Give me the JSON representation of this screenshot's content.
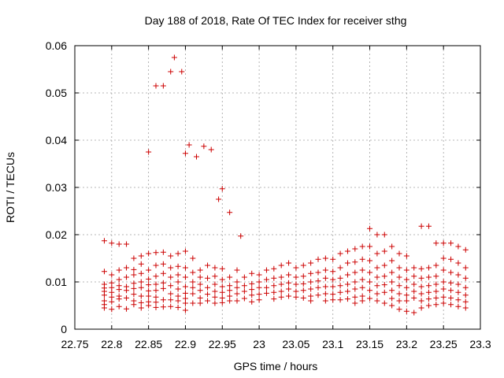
{
  "chart_data": {
    "type": "scatter",
    "title": "Day 188 of 2018, Rate Of TEC Index for receiver sthg",
    "xlabel": "GPS time / hours",
    "ylabel": "ROTI / TECUs",
    "xlim": [
      22.75,
      23.3
    ],
    "ylim": [
      0,
      0.06
    ],
    "grid": true,
    "marker": "+",
    "color": "#cc0000",
    "x_ticks": [
      "22.75",
      "22.8",
      "22.85",
      "22.9",
      "22.95",
      "23",
      "23.05",
      "23.1",
      "23.15",
      "23.2",
      "23.25",
      "23.3"
    ],
    "y_ticks": [
      "0",
      "0.01",
      "0.02",
      "0.03",
      "0.04",
      "0.05",
      "0.06"
    ],
    "points": [
      [
        22.79,
        0.0187
      ],
      [
        22.79,
        0.0122
      ],
      [
        22.79,
        0.0095
      ],
      [
        22.79,
        0.0087
      ],
      [
        22.79,
        0.008
      ],
      [
        22.79,
        0.0072
      ],
      [
        22.79,
        0.006
      ],
      [
        22.79,
        0.0052
      ],
      [
        22.79,
        0.0045
      ],
      [
        22.8,
        0.0182
      ],
      [
        22.8,
        0.0115
      ],
      [
        22.8,
        0.0098
      ],
      [
        22.8,
        0.0088
      ],
      [
        22.8,
        0.0078
      ],
      [
        22.8,
        0.0068
      ],
      [
        22.8,
        0.0058
      ],
      [
        22.8,
        0.0042
      ],
      [
        22.81,
        0.018
      ],
      [
        22.81,
        0.0125
      ],
      [
        22.81,
        0.0105
      ],
      [
        22.81,
        0.0092
      ],
      [
        22.81,
        0.0084
      ],
      [
        22.81,
        0.007
      ],
      [
        22.81,
        0.0064
      ],
      [
        22.81,
        0.0048
      ],
      [
        22.82,
        0.018
      ],
      [
        22.82,
        0.013
      ],
      [
        22.82,
        0.011
      ],
      [
        22.82,
        0.009
      ],
      [
        22.82,
        0.0082
      ],
      [
        22.82,
        0.0066
      ],
      [
        22.82,
        0.0043
      ],
      [
        22.83,
        0.015
      ],
      [
        22.83,
        0.0126
      ],
      [
        22.83,
        0.0115
      ],
      [
        22.83,
        0.0097
      ],
      [
        22.83,
        0.0086
      ],
      [
        22.83,
        0.0074
      ],
      [
        22.83,
        0.006
      ],
      [
        22.83,
        0.0052
      ],
      [
        22.84,
        0.0155
      ],
      [
        22.84,
        0.0138
      ],
      [
        22.84,
        0.0118
      ],
      [
        22.84,
        0.01
      ],
      [
        22.84,
        0.0088
      ],
      [
        22.84,
        0.007
      ],
      [
        22.84,
        0.0056
      ],
      [
        22.84,
        0.0045
      ],
      [
        22.85,
        0.016
      ],
      [
        22.85,
        0.0125
      ],
      [
        22.85,
        0.0106
      ],
      [
        22.85,
        0.0094
      ],
      [
        22.85,
        0.0081
      ],
      [
        22.85,
        0.007
      ],
      [
        22.85,
        0.0058
      ],
      [
        22.85,
        0.005
      ],
      [
        22.86,
        0.0162
      ],
      [
        22.86,
        0.0135
      ],
      [
        22.86,
        0.0112
      ],
      [
        22.86,
        0.0095
      ],
      [
        22.86,
        0.0082
      ],
      [
        22.86,
        0.0068
      ],
      [
        22.86,
        0.0057
      ],
      [
        22.86,
        0.0046
      ],
      [
        22.87,
        0.0163
      ],
      [
        22.87,
        0.0138
      ],
      [
        22.87,
        0.0118
      ],
      [
        22.87,
        0.0098
      ],
      [
        22.87,
        0.0086
      ],
      [
        22.87,
        0.0062
      ],
      [
        22.87,
        0.0047
      ],
      [
        22.88,
        0.0155
      ],
      [
        22.88,
        0.013
      ],
      [
        22.88,
        0.011
      ],
      [
        22.88,
        0.0092
      ],
      [
        22.88,
        0.0075
      ],
      [
        22.88,
        0.0062
      ],
      [
        22.88,
        0.0048
      ],
      [
        22.89,
        0.016
      ],
      [
        22.89,
        0.0133
      ],
      [
        22.89,
        0.0115
      ],
      [
        22.89,
        0.01
      ],
      [
        22.89,
        0.0085
      ],
      [
        22.89,
        0.007
      ],
      [
        22.89,
        0.006
      ],
      [
        22.89,
        0.0046
      ],
      [
        22.9,
        0.0165
      ],
      [
        22.9,
        0.013
      ],
      [
        22.9,
        0.011
      ],
      [
        22.9,
        0.009
      ],
      [
        22.9,
        0.0076
      ],
      [
        22.9,
        0.0065
      ],
      [
        22.9,
        0.0055
      ],
      [
        22.9,
        0.004
      ],
      [
        22.91,
        0.015
      ],
      [
        22.91,
        0.012
      ],
      [
        22.91,
        0.01
      ],
      [
        22.91,
        0.0088
      ],
      [
        22.91,
        0.0075
      ],
      [
        22.91,
        0.0055
      ],
      [
        22.92,
        0.0125
      ],
      [
        22.92,
        0.011
      ],
      [
        22.92,
        0.0095
      ],
      [
        22.92,
        0.0082
      ],
      [
        22.92,
        0.0066
      ],
      [
        22.92,
        0.0055
      ],
      [
        22.93,
        0.0135
      ],
      [
        22.93,
        0.0108
      ],
      [
        22.93,
        0.0088
      ],
      [
        22.93,
        0.0074
      ],
      [
        22.93,
        0.006
      ],
      [
        22.94,
        0.013
      ],
      [
        22.94,
        0.0112
      ],
      [
        22.94,
        0.0095
      ],
      [
        22.94,
        0.008
      ],
      [
        22.94,
        0.0068
      ],
      [
        22.94,
        0.0055
      ],
      [
        22.95,
        0.0128
      ],
      [
        22.95,
        0.0105
      ],
      [
        22.95,
        0.009
      ],
      [
        22.95,
        0.0078
      ],
      [
        22.95,
        0.0066
      ],
      [
        22.95,
        0.0056
      ],
      [
        22.96,
        0.011
      ],
      [
        22.96,
        0.0092
      ],
      [
        22.96,
        0.0082
      ],
      [
        22.96,
        0.007
      ],
      [
        22.96,
        0.006
      ],
      [
        22.97,
        0.0125
      ],
      [
        22.97,
        0.01
      ],
      [
        22.97,
        0.0088
      ],
      [
        22.97,
        0.0075
      ],
      [
        22.97,
        0.006
      ],
      [
        22.98,
        0.011
      ],
      [
        22.98,
        0.0092
      ],
      [
        22.98,
        0.008
      ],
      [
        22.98,
        0.0065
      ],
      [
        22.99,
        0.0118
      ],
      [
        22.99,
        0.0096
      ],
      [
        22.99,
        0.0084
      ],
      [
        22.99,
        0.0072
      ],
      [
        22.99,
        0.0058
      ],
      [
        23.0,
        0.0115
      ],
      [
        23.0,
        0.01
      ],
      [
        23.0,
        0.0088
      ],
      [
        23.0,
        0.0074
      ],
      [
        23.0,
        0.0062
      ],
      [
        23.01,
        0.0125
      ],
      [
        23.01,
        0.0105
      ],
      [
        23.01,
        0.0088
      ],
      [
        23.01,
        0.0076
      ],
      [
        23.02,
        0.0128
      ],
      [
        23.02,
        0.0108
      ],
      [
        23.02,
        0.0092
      ],
      [
        23.02,
        0.0078
      ],
      [
        23.02,
        0.0064
      ],
      [
        23.03,
        0.0135
      ],
      [
        23.03,
        0.011
      ],
      [
        23.03,
        0.0095
      ],
      [
        23.03,
        0.008
      ],
      [
        23.03,
        0.0068
      ],
      [
        23.04,
        0.014
      ],
      [
        23.04,
        0.0115
      ],
      [
        23.04,
        0.0098
      ],
      [
        23.04,
        0.0085
      ],
      [
        23.04,
        0.007
      ],
      [
        23.05,
        0.013
      ],
      [
        23.05,
        0.011
      ],
      [
        23.05,
        0.0095
      ],
      [
        23.05,
        0.008
      ],
      [
        23.05,
        0.0068
      ],
      [
        23.06,
        0.0135
      ],
      [
        23.06,
        0.0112
      ],
      [
        23.06,
        0.0096
      ],
      [
        23.06,
        0.0082
      ],
      [
        23.06,
        0.0066
      ],
      [
        23.07,
        0.014
      ],
      [
        23.07,
        0.0118
      ],
      [
        23.07,
        0.01
      ],
      [
        23.07,
        0.0085
      ],
      [
        23.07,
        0.007
      ],
      [
        23.07,
        0.006
      ],
      [
        23.08,
        0.0148
      ],
      [
        23.08,
        0.012
      ],
      [
        23.08,
        0.0102
      ],
      [
        23.08,
        0.0088
      ],
      [
        23.08,
        0.0072
      ],
      [
        23.09,
        0.015
      ],
      [
        23.09,
        0.0125
      ],
      [
        23.09,
        0.0108
      ],
      [
        23.09,
        0.009
      ],
      [
        23.09,
        0.0075
      ],
      [
        23.09,
        0.006
      ],
      [
        23.1,
        0.0148
      ],
      [
        23.1,
        0.0122
      ],
      [
        23.1,
        0.0105
      ],
      [
        23.1,
        0.009
      ],
      [
        23.1,
        0.0074
      ],
      [
        23.1,
        0.0062
      ],
      [
        23.11,
        0.016
      ],
      [
        23.11,
        0.013
      ],
      [
        23.11,
        0.0108
      ],
      [
        23.11,
        0.0092
      ],
      [
        23.11,
        0.0078
      ],
      [
        23.11,
        0.0062
      ],
      [
        23.12,
        0.0165
      ],
      [
        23.12,
        0.014
      ],
      [
        23.12,
        0.0115
      ],
      [
        23.12,
        0.0095
      ],
      [
        23.12,
        0.008
      ],
      [
        23.12,
        0.0064
      ],
      [
        23.13,
        0.017
      ],
      [
        23.13,
        0.0142
      ],
      [
        23.13,
        0.012
      ],
      [
        23.13,
        0.01
      ],
      [
        23.13,
        0.0085
      ],
      [
        23.13,
        0.0068
      ],
      [
        23.13,
        0.0055
      ],
      [
        23.14,
        0.0175
      ],
      [
        23.14,
        0.0148
      ],
      [
        23.14,
        0.0125
      ],
      [
        23.14,
        0.0105
      ],
      [
        23.14,
        0.0088
      ],
      [
        23.14,
        0.007
      ],
      [
        23.14,
        0.006
      ],
      [
        23.15,
        0.0213
      ],
      [
        23.15,
        0.0175
      ],
      [
        23.15,
        0.0145
      ],
      [
        23.15,
        0.012
      ],
      [
        23.15,
        0.01
      ],
      [
        23.15,
        0.0082
      ],
      [
        23.15,
        0.0065
      ],
      [
        23.16,
        0.02
      ],
      [
        23.16,
        0.016
      ],
      [
        23.16,
        0.013
      ],
      [
        23.16,
        0.011
      ],
      [
        23.16,
        0.0092
      ],
      [
        23.16,
        0.0075
      ],
      [
        23.16,
        0.006
      ],
      [
        23.17,
        0.02
      ],
      [
        23.17,
        0.0165
      ],
      [
        23.17,
        0.0135
      ],
      [
        23.17,
        0.0112
      ],
      [
        23.17,
        0.0094
      ],
      [
        23.17,
        0.0078
      ],
      [
        23.17,
        0.0055
      ],
      [
        23.18,
        0.0175
      ],
      [
        23.18,
        0.0145
      ],
      [
        23.18,
        0.012
      ],
      [
        23.18,
        0.01
      ],
      [
        23.18,
        0.0082
      ],
      [
        23.18,
        0.0065
      ],
      [
        23.18,
        0.005
      ],
      [
        23.19,
        0.016
      ],
      [
        23.19,
        0.013
      ],
      [
        23.19,
        0.011
      ],
      [
        23.19,
        0.0092
      ],
      [
        23.19,
        0.0075
      ],
      [
        23.19,
        0.006
      ],
      [
        23.19,
        0.0042
      ],
      [
        23.2,
        0.0155
      ],
      [
        23.2,
        0.0125
      ],
      [
        23.2,
        0.0105
      ],
      [
        23.2,
        0.0088
      ],
      [
        23.2,
        0.0072
      ],
      [
        23.2,
        0.006
      ],
      [
        23.2,
        0.0038
      ],
      [
        23.21,
        0.013
      ],
      [
        23.21,
        0.0112
      ],
      [
        23.21,
        0.0095
      ],
      [
        23.21,
        0.008
      ],
      [
        23.21,
        0.0066
      ],
      [
        23.21,
        0.0035
      ],
      [
        23.22,
        0.0218
      ],
      [
        23.22,
        0.0128
      ],
      [
        23.22,
        0.0108
      ],
      [
        23.22,
        0.009
      ],
      [
        23.22,
        0.0075
      ],
      [
        23.22,
        0.006
      ],
      [
        23.22,
        0.0045
      ],
      [
        23.23,
        0.0218
      ],
      [
        23.23,
        0.013
      ],
      [
        23.23,
        0.011
      ],
      [
        23.23,
        0.0092
      ],
      [
        23.23,
        0.0078
      ],
      [
        23.23,
        0.0064
      ],
      [
        23.23,
        0.005
      ],
      [
        23.24,
        0.0182
      ],
      [
        23.24,
        0.0135
      ],
      [
        23.24,
        0.0112
      ],
      [
        23.24,
        0.0095
      ],
      [
        23.24,
        0.008
      ],
      [
        23.24,
        0.0066
      ],
      [
        23.24,
        0.0052
      ],
      [
        23.25,
        0.0182
      ],
      [
        23.25,
        0.015
      ],
      [
        23.25,
        0.0125
      ],
      [
        23.25,
        0.01
      ],
      [
        23.25,
        0.0085
      ],
      [
        23.25,
        0.0068
      ],
      [
        23.25,
        0.0055
      ],
      [
        23.26,
        0.0182
      ],
      [
        23.26,
        0.0148
      ],
      [
        23.26,
        0.012
      ],
      [
        23.26,
        0.0098
      ],
      [
        23.26,
        0.0082
      ],
      [
        23.26,
        0.0066
      ],
      [
        23.26,
        0.0052
      ],
      [
        23.27,
        0.0175
      ],
      [
        23.27,
        0.014
      ],
      [
        23.27,
        0.0115
      ],
      [
        23.27,
        0.0095
      ],
      [
        23.27,
        0.0078
      ],
      [
        23.27,
        0.0062
      ],
      [
        23.27,
        0.0048
      ],
      [
        23.28,
        0.0168
      ],
      [
        23.28,
        0.013
      ],
      [
        23.28,
        0.0108
      ],
      [
        23.28,
        0.0088
      ],
      [
        23.28,
        0.0072
      ],
      [
        23.28,
        0.0058
      ],
      [
        23.28,
        0.0045
      ],
      [
        22.85,
        0.0375
      ],
      [
        22.86,
        0.0515
      ],
      [
        22.87,
        0.0515
      ],
      [
        22.88,
        0.0545
      ],
      [
        22.885,
        0.0575
      ],
      [
        22.895,
        0.0545
      ],
      [
        22.9,
        0.0372
      ],
      [
        22.905,
        0.039
      ],
      [
        22.915,
        0.0365
      ],
      [
        22.925,
        0.0387
      ],
      [
        22.935,
        0.038
      ],
      [
        22.945,
        0.0275
      ],
      [
        22.95,
        0.0297
      ],
      [
        22.96,
        0.0247
      ],
      [
        22.975,
        0.0197
      ]
    ]
  }
}
